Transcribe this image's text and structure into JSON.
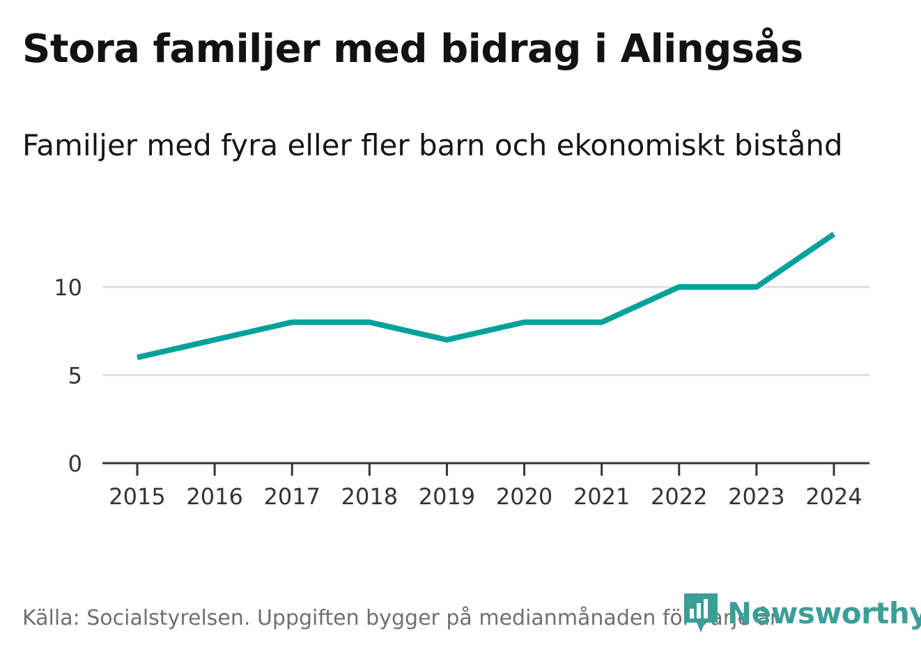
{
  "chart_data": {
    "type": "line",
    "title": "Stora familjer med bidrag i Alingsås",
    "subtitle": "Familjer med fyra eller fler barn och ekonomiskt bistånd",
    "xlabel": "",
    "ylabel": "",
    "x": [
      "2015",
      "2016",
      "2017",
      "2018",
      "2019",
      "2020",
      "2021",
      "2022",
      "2023",
      "2024"
    ],
    "series": [
      {
        "name": "Familjer med fyra eller fler barn och ekonomiskt bistånd",
        "values": [
          6,
          7,
          8,
          8,
          7,
          8,
          8,
          10,
          10,
          13
        ],
        "color": "#00a19a"
      }
    ],
    "ylim": [
      0,
      13
    ],
    "yticks": [
      0,
      5,
      10
    ],
    "grid": true,
    "legend": "none"
  },
  "footer": {
    "source": "Källa: Socialstyrelsen. Uppgiften bygger på medianmånaden för varje år"
  },
  "brand": {
    "name": "Newsworthy",
    "color": "#3a9f97"
  }
}
